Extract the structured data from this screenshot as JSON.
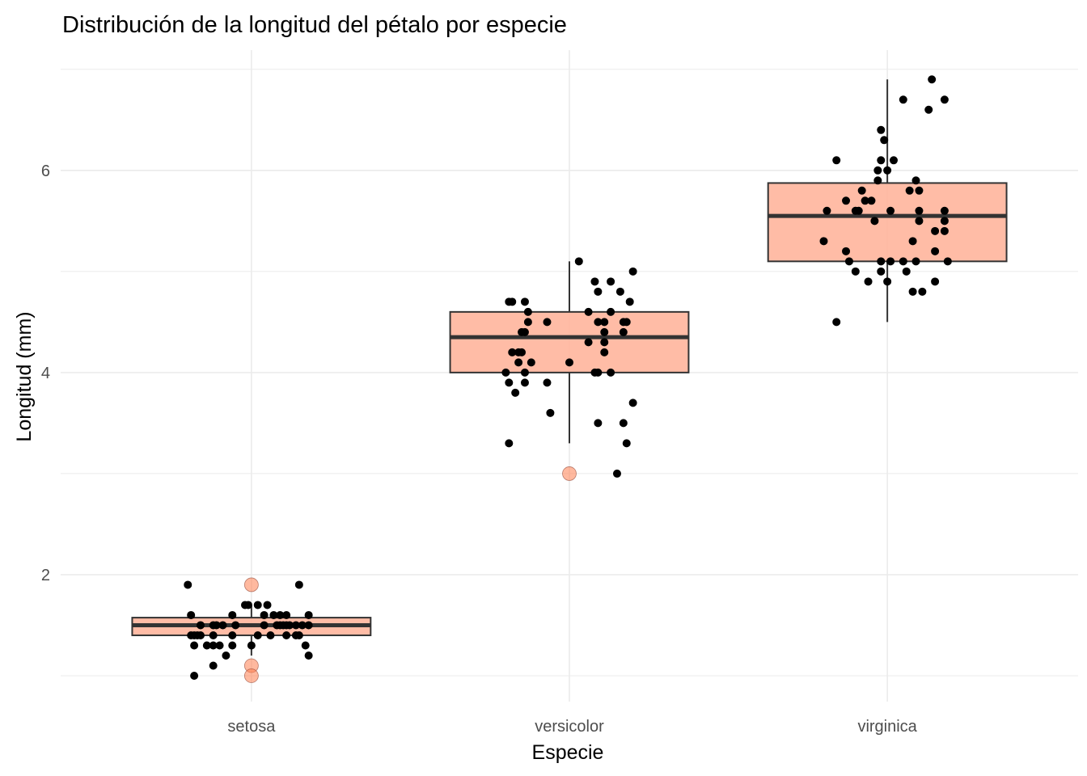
{
  "chart_data": {
    "type": "boxplot",
    "title": "Distribución de la longitud del pétalo por especie",
    "xlabel": "Especie",
    "ylabel": "Longitud (mm)",
    "categories": [
      "setosa",
      "versicolor",
      "virginica"
    ],
    "ylim": [
      0.744,
      7.19
    ],
    "yticks": [
      2,
      4,
      6
    ],
    "ytick_labels": [
      "2",
      "4",
      "6"
    ],
    "y_minor_gridlines": [
      1,
      3,
      5,
      7
    ],
    "grid": true,
    "legend": "none",
    "colors": {
      "box_fill": "#FFB59C",
      "box_line": "#333333",
      "outlier_fill": "#FF7F50",
      "point": "#000000",
      "grid": "#EBEBEB"
    },
    "boxes": [
      {
        "category": "setosa",
        "whisker_low": 1.2,
        "q1": 1.4,
        "median": 1.5,
        "q3": 1.575,
        "whisker_high": 1.7,
        "outliers": [
          1.9,
          1.1,
          1.0
        ]
      },
      {
        "category": "versicolor",
        "whisker_low": 3.3,
        "q1": 4.0,
        "median": 4.35,
        "q3": 4.6,
        "whisker_high": 5.1,
        "outliers": [
          3.0
        ]
      },
      {
        "category": "virginica",
        "whisker_low": 4.5,
        "q1": 5.1,
        "median": 5.55,
        "q3": 5.875,
        "whisker_high": 6.9,
        "outliers": []
      }
    ],
    "points": [
      {
        "category": "setosa",
        "jitter": -0.2,
        "values": []
      },
      {
        "category": "setosa",
        "jitter": [
          -0.2,
          -0.09,
          0.15,
          -0.17,
          -0.03,
          0.0,
          0.04,
          0.07,
          0.1
        ],
        "values": [
          1.9,
          1.6,
          1.6,
          1.4,
          1.7,
          1.7,
          1.7,
          1.7,
          1.7
        ]
      }
    ],
    "jitter_points": {
      "setosa": [
        [
          -0.2,
          1.9
        ],
        [
          0.15,
          1.9
        ],
        [
          -0.02,
          1.7
        ],
        [
          -0.01,
          1.7
        ],
        [
          0.02,
          1.7
        ],
        [
          0.05,
          1.7
        ],
        [
          -0.19,
          1.6
        ],
        [
          -0.06,
          1.6
        ],
        [
          0.04,
          1.6
        ],
        [
          0.07,
          1.6
        ],
        [
          0.09,
          1.6
        ],
        [
          0.11,
          1.6
        ],
        [
          0.18,
          1.6
        ],
        [
          -0.16,
          1.5
        ],
        [
          -0.12,
          1.5
        ],
        [
          -0.11,
          1.5
        ],
        [
          -0.09,
          1.5
        ],
        [
          -0.05,
          1.5
        ],
        [
          0.04,
          1.5
        ],
        [
          0.08,
          1.5
        ],
        [
          0.09,
          1.5
        ],
        [
          0.1,
          1.5
        ],
        [
          0.11,
          1.5
        ],
        [
          0.12,
          1.5
        ],
        [
          0.14,
          1.5
        ],
        [
          0.16,
          1.5
        ],
        [
          0.18,
          1.5
        ],
        [
          -0.19,
          1.4
        ],
        [
          -0.18,
          1.4
        ],
        [
          -0.17,
          1.4
        ],
        [
          -0.16,
          1.4
        ],
        [
          -0.12,
          1.4
        ],
        [
          -0.06,
          1.4
        ],
        [
          0.02,
          1.4
        ],
        [
          0.06,
          1.4
        ],
        [
          0.11,
          1.4
        ],
        [
          0.14,
          1.4
        ],
        [
          0.15,
          1.4
        ],
        [
          -0.18,
          1.3
        ],
        [
          -0.14,
          1.3
        ],
        [
          -0.12,
          1.3
        ],
        [
          -0.1,
          1.3
        ],
        [
          -0.06,
          1.3
        ],
        [
          0.0,
          1.3
        ],
        [
          0.17,
          1.3
        ],
        [
          -0.08,
          1.2
        ],
        [
          0.18,
          1.2
        ],
        [
          -0.12,
          1.1
        ],
        [
          -0.18,
          1.0
        ]
      ],
      "versicolor": [
        [
          0.03,
          5.1
        ],
        [
          0.2,
          5.0
        ],
        [
          0.08,
          4.9
        ],
        [
          0.13,
          4.9
        ],
        [
          0.09,
          4.8
        ],
        [
          0.16,
          4.8
        ],
        [
          -0.19,
          4.7
        ],
        [
          -0.18,
          4.7
        ],
        [
          -0.14,
          4.7
        ],
        [
          0.19,
          4.7
        ],
        [
          -0.13,
          4.6
        ],
        [
          0.06,
          4.6
        ],
        [
          0.13,
          4.6
        ],
        [
          -0.13,
          4.5
        ],
        [
          -0.07,
          4.5
        ],
        [
          0.09,
          4.5
        ],
        [
          0.11,
          4.5
        ],
        [
          0.17,
          4.5
        ],
        [
          0.18,
          4.5
        ],
        [
          -0.15,
          4.4
        ],
        [
          -0.14,
          4.4
        ],
        [
          0.11,
          4.4
        ],
        [
          0.17,
          4.4
        ],
        [
          0.06,
          4.3
        ],
        [
          0.11,
          4.3
        ],
        [
          -0.18,
          4.2
        ],
        [
          -0.16,
          4.2
        ],
        [
          -0.15,
          4.2
        ],
        [
          0.11,
          4.2
        ],
        [
          -0.16,
          4.1
        ],
        [
          -0.12,
          4.1
        ],
        [
          0.0,
          4.1
        ],
        [
          -0.2,
          4.0
        ],
        [
          -0.14,
          4.0
        ],
        [
          0.08,
          4.0
        ],
        [
          0.09,
          4.0
        ],
        [
          0.13,
          4.0
        ],
        [
          -0.19,
          3.9
        ],
        [
          -0.14,
          3.9
        ],
        [
          -0.07,
          3.9
        ],
        [
          -0.17,
          3.8
        ],
        [
          0.2,
          3.7
        ],
        [
          -0.06,
          3.6
        ],
        [
          0.09,
          3.5
        ],
        [
          0.17,
          3.5
        ],
        [
          -0.19,
          3.3
        ],
        [
          0.18,
          3.3
        ],
        [
          0.15,
          3.0
        ]
      ],
      "virginica": [
        [
          0.14,
          6.9
        ],
        [
          0.05,
          6.7
        ],
        [
          0.18,
          6.7
        ],
        [
          0.13,
          6.6
        ],
        [
          -0.02,
          6.4
        ],
        [
          -0.01,
          6.3
        ],
        [
          -0.16,
          6.1
        ],
        [
          -0.02,
          6.1
        ],
        [
          0.02,
          6.1
        ],
        [
          -0.03,
          6.0
        ],
        [
          0.0,
          6.0
        ],
        [
          -0.03,
          5.9
        ],
        [
          0.09,
          5.9
        ],
        [
          -0.08,
          5.8
        ],
        [
          0.07,
          5.8
        ],
        [
          0.1,
          5.8
        ],
        [
          -0.13,
          5.7
        ],
        [
          -0.07,
          5.7
        ],
        [
          -0.05,
          5.7
        ],
        [
          -0.19,
          5.6
        ],
        [
          -0.1,
          5.6
        ],
        [
          -0.09,
          5.6
        ],
        [
          0.01,
          5.6
        ],
        [
          0.1,
          5.6
        ],
        [
          0.18,
          5.6
        ],
        [
          -0.04,
          5.5
        ],
        [
          0.1,
          5.5
        ],
        [
          0.18,
          5.5
        ],
        [
          0.15,
          5.4
        ],
        [
          0.18,
          5.4
        ],
        [
          -0.2,
          5.3
        ],
        [
          0.08,
          5.3
        ],
        [
          -0.13,
          5.2
        ],
        [
          0.15,
          5.2
        ],
        [
          -0.12,
          5.1
        ],
        [
          -0.02,
          5.1
        ],
        [
          0.01,
          5.1
        ],
        [
          0.05,
          5.1
        ],
        [
          0.09,
          5.1
        ],
        [
          0.19,
          5.1
        ],
        [
          -0.1,
          5.0
        ],
        [
          -0.02,
          5.0
        ],
        [
          0.06,
          5.0
        ],
        [
          -0.06,
          4.9
        ],
        [
          0.0,
          4.9
        ],
        [
          0.15,
          4.9
        ],
        [
          0.08,
          4.8
        ],
        [
          0.11,
          4.8
        ],
        [
          -0.16,
          4.5
        ]
      ]
    }
  }
}
